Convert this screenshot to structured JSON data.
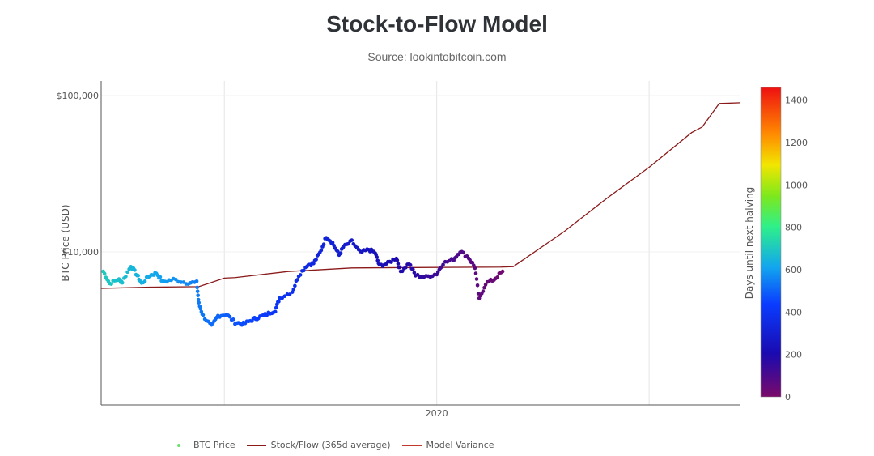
{
  "title": "Stock-to-Flow Model",
  "subtitle": "Source: lookintobitcoin.com",
  "chart_data": {
    "type": "scatter",
    "title": "Stock-to-Flow Model",
    "xlabel": "",
    "ylabel": "BTC Price (USD)",
    "yscale": "log",
    "ylim": [
      1050,
      124000
    ],
    "xlim": [
      2018.42,
      2021.43
    ],
    "x_gridlines": [
      2019,
      2020,
      2021
    ],
    "x_tick_labels": [
      {
        "value": 2020,
        "label": "2020"
      }
    ],
    "y_tick_labels": [
      {
        "value": 10000,
        "label": "$10,000"
      },
      {
        "value": 100000,
        "label": "$100,000"
      }
    ],
    "colorbar": {
      "title": "Days until next halving",
      "range": [
        0,
        1460
      ],
      "ticks": [
        0,
        200,
        400,
        600,
        800,
        1000,
        1200,
        1400
      ],
      "halving_date": 2020.36
    },
    "legend": {
      "placement": "bottom",
      "entries": [
        "BTC Price",
        "Stock/Flow (365d average)",
        "Model Variance"
      ]
    },
    "series": [
      {
        "name": "BTC Price",
        "type": "scatter",
        "points": [
          [
            2018.43,
            7510
          ],
          [
            2018.46,
            6280
          ],
          [
            2018.5,
            6670
          ],
          [
            2018.52,
            6430
          ],
          [
            2018.56,
            8160
          ],
          [
            2018.59,
            7080
          ],
          [
            2018.61,
            6280
          ],
          [
            2018.65,
            7080
          ],
          [
            2018.68,
            7330
          ],
          [
            2018.71,
            6430
          ],
          [
            2018.76,
            6670
          ],
          [
            2018.82,
            6360
          ],
          [
            2018.87,
            6360
          ],
          [
            2018.88,
            4660
          ],
          [
            2018.9,
            3900
          ],
          [
            2018.94,
            3340
          ],
          [
            2018.97,
            3900
          ],
          [
            2019.01,
            3990
          ],
          [
            2019.05,
            3540
          ],
          [
            2019.09,
            3460
          ],
          [
            2019.13,
            3670
          ],
          [
            2019.16,
            3810
          ],
          [
            2019.2,
            3990
          ],
          [
            2019.24,
            4240
          ],
          [
            2019.26,
            5070
          ],
          [
            2019.32,
            5570
          ],
          [
            2019.35,
            7080
          ],
          [
            2019.39,
            8250
          ],
          [
            2019.42,
            8460
          ],
          [
            2019.45,
            9880
          ],
          [
            2019.48,
            12540
          ],
          [
            2019.51,
            11400
          ],
          [
            2019.54,
            9540
          ],
          [
            2019.56,
            10740
          ],
          [
            2019.6,
            11680
          ],
          [
            2019.64,
            9880
          ],
          [
            2019.68,
            10360
          ],
          [
            2019.71,
            9880
          ],
          [
            2019.73,
            8160
          ],
          [
            2019.77,
            8460
          ],
          [
            2019.81,
            9200
          ],
          [
            2019.83,
            7510
          ],
          [
            2019.87,
            8460
          ],
          [
            2019.9,
            7080
          ],
          [
            2019.95,
            6910
          ],
          [
            2020.0,
            7250
          ],
          [
            2020.03,
            8460
          ],
          [
            2020.08,
            8980
          ],
          [
            2020.11,
            10120
          ],
          [
            2020.15,
            9200
          ],
          [
            2020.18,
            7980
          ],
          [
            2020.2,
            4950
          ],
          [
            2020.23,
            6280
          ],
          [
            2020.27,
            6670
          ],
          [
            2020.31,
            7510
          ]
        ]
      },
      {
        "name": "Stock/Flow (365d average)",
        "type": "line",
        "color": "#8b1a1a",
        "points": [
          [
            2018.42,
            5850
          ],
          [
            2018.65,
            5950
          ],
          [
            2018.88,
            6000
          ],
          [
            2019.0,
            6800
          ],
          [
            2019.05,
            6850
          ],
          [
            2019.3,
            7500
          ],
          [
            2019.6,
            7900
          ],
          [
            2019.9,
            7950
          ],
          [
            2020.3,
            8000
          ],
          [
            2020.36,
            8050
          ],
          [
            2020.6,
            13500
          ],
          [
            2020.8,
            22000
          ],
          [
            2021.0,
            34800
          ],
          [
            2021.2,
            58000
          ],
          [
            2021.25,
            63000
          ],
          [
            2021.33,
            89000
          ],
          [
            2021.43,
            90000
          ]
        ]
      },
      {
        "name": "Model Variance",
        "type": "line",
        "color": "#c0392b",
        "points": []
      }
    ]
  }
}
